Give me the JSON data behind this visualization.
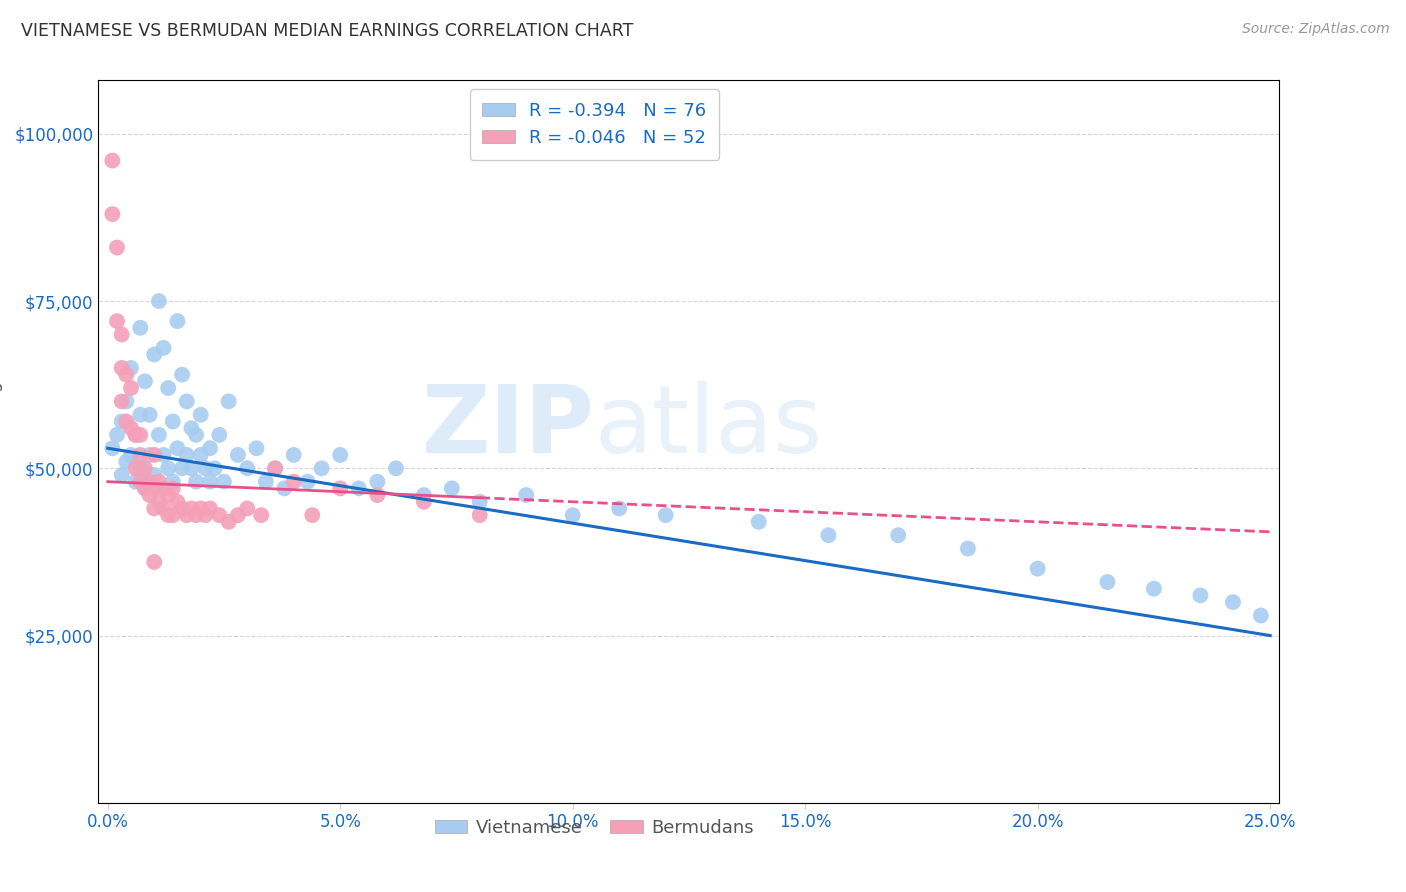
{
  "title": "VIETNAMESE VS BERMUDAN MEDIAN EARNINGS CORRELATION CHART",
  "source": "Source: ZipAtlas.com",
  "xlabel_ticks": [
    "0.0%",
    "5.0%",
    "10.0%",
    "15.0%",
    "20.0%",
    "25.0%"
  ],
  "xlabel_tick_vals": [
    0.0,
    0.05,
    0.1,
    0.15,
    0.2,
    0.25
  ],
  "ylabel": "Median Earnings",
  "ylabel_ticks": [
    "$25,000",
    "$50,000",
    "$75,000",
    "$100,000"
  ],
  "ylabel_tick_vals": [
    25000,
    50000,
    75000,
    100000
  ],
  "xlim": [
    -0.002,
    0.252
  ],
  "ylim": [
    0,
    108000
  ],
  "watermark_zip": "ZIP",
  "watermark_atlas": "atlas",
  "blue_color": "#A8CCF0",
  "pink_color": "#F4A0B8",
  "blue_line_color": "#1A6BC4",
  "pink_line_color": "#E8508A",
  "blue_R": -0.394,
  "blue_N": 76,
  "pink_R": -0.046,
  "pink_N": 52,
  "legend_label_blue": "Vietnamese",
  "legend_label_pink": "Bermudans",
  "grid_color": "#CCCCCC",
  "background_color": "#FFFFFF",
  "title_color": "#333333",
  "axis_tick_color": "#1A6BC4",
  "blue_scatter_x": [
    0.001,
    0.002,
    0.003,
    0.003,
    0.004,
    0.004,
    0.005,
    0.005,
    0.006,
    0.006,
    0.007,
    0.007,
    0.007,
    0.008,
    0.008,
    0.009,
    0.009,
    0.01,
    0.01,
    0.011,
    0.011,
    0.012,
    0.012,
    0.013,
    0.013,
    0.014,
    0.014,
    0.015,
    0.015,
    0.016,
    0.016,
    0.017,
    0.017,
    0.018,
    0.018,
    0.019,
    0.019,
    0.02,
    0.02,
    0.021,
    0.022,
    0.022,
    0.023,
    0.024,
    0.025,
    0.026,
    0.028,
    0.03,
    0.032,
    0.034,
    0.036,
    0.038,
    0.04,
    0.043,
    0.046,
    0.05,
    0.054,
    0.058,
    0.062,
    0.068,
    0.074,
    0.08,
    0.09,
    0.1,
    0.11,
    0.12,
    0.14,
    0.155,
    0.17,
    0.185,
    0.2,
    0.215,
    0.225,
    0.235,
    0.242,
    0.248
  ],
  "blue_scatter_y": [
    53000,
    55000,
    49000,
    57000,
    51000,
    60000,
    52000,
    65000,
    48000,
    55000,
    50000,
    58000,
    71000,
    47000,
    63000,
    52000,
    58000,
    49000,
    67000,
    55000,
    75000,
    52000,
    68000,
    50000,
    62000,
    48000,
    57000,
    53000,
    72000,
    50000,
    64000,
    52000,
    60000,
    50000,
    56000,
    48000,
    55000,
    52000,
    58000,
    50000,
    48000,
    53000,
    50000,
    55000,
    48000,
    60000,
    52000,
    50000,
    53000,
    48000,
    50000,
    47000,
    52000,
    48000,
    50000,
    52000,
    47000,
    48000,
    50000,
    46000,
    47000,
    45000,
    46000,
    43000,
    44000,
    43000,
    42000,
    40000,
    40000,
    38000,
    35000,
    33000,
    32000,
    31000,
    30000,
    28000
  ],
  "pink_scatter_x": [
    0.001,
    0.001,
    0.002,
    0.002,
    0.003,
    0.003,
    0.003,
    0.004,
    0.004,
    0.005,
    0.005,
    0.006,
    0.006,
    0.007,
    0.007,
    0.007,
    0.008,
    0.008,
    0.009,
    0.009,
    0.01,
    0.01,
    0.01,
    0.011,
    0.011,
    0.012,
    0.012,
    0.013,
    0.013,
    0.014,
    0.014,
    0.015,
    0.016,
    0.017,
    0.018,
    0.019,
    0.02,
    0.021,
    0.022,
    0.024,
    0.026,
    0.028,
    0.03,
    0.033,
    0.036,
    0.04,
    0.044,
    0.05,
    0.058,
    0.068,
    0.08,
    0.01
  ],
  "pink_scatter_y": [
    96000,
    88000,
    83000,
    72000,
    70000,
    65000,
    60000,
    64000,
    57000,
    62000,
    56000,
    55000,
    50000,
    52000,
    48000,
    55000,
    50000,
    47000,
    48000,
    46000,
    52000,
    47000,
    44000,
    48000,
    45000,
    47000,
    44000,
    46000,
    43000,
    47000,
    43000,
    45000,
    44000,
    43000,
    44000,
    43000,
    44000,
    43000,
    44000,
    43000,
    42000,
    43000,
    44000,
    43000,
    50000,
    48000,
    43000,
    47000,
    46000,
    45000,
    43000,
    36000
  ]
}
